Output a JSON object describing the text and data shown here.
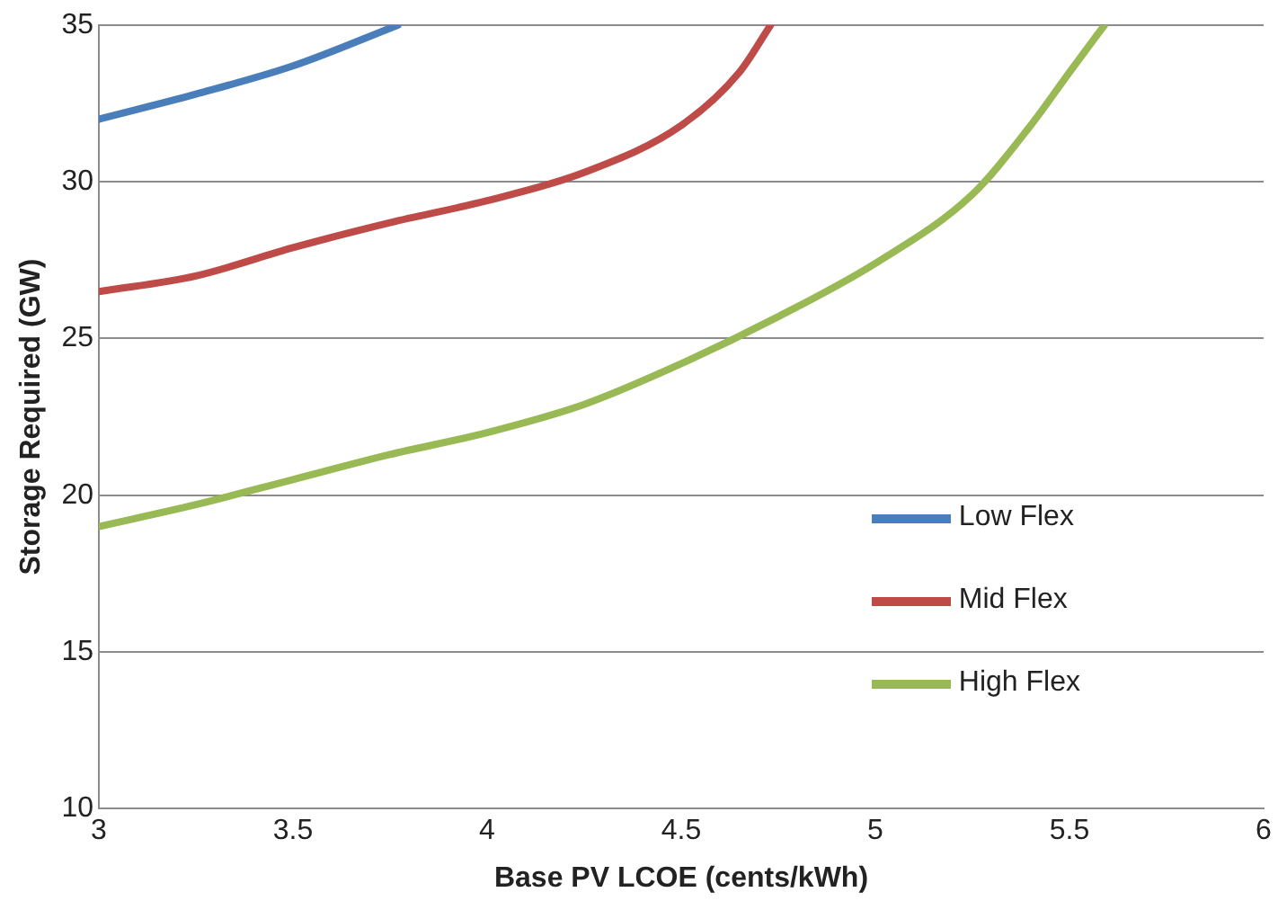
{
  "chart_data": {
    "type": "line",
    "xlabel": "Base PV LCOE (cents/kWh)",
    "ylabel": "Storage Required (GW)",
    "xlim": [
      3,
      6
    ],
    "xticks": [
      3,
      3.5,
      4,
      4.5,
      5,
      5.5,
      6
    ],
    "ylim": [
      10,
      35
    ],
    "yticks": [
      10,
      15,
      20,
      25,
      30,
      35
    ],
    "grid": "y",
    "legend": "right",
    "marker": "none",
    "line_style": "solid",
    "series": [
      {
        "name": "Low Flex",
        "color": "#4a7ebb",
        "x": [
          3,
          3.25,
          3.5,
          3.77
        ],
        "values": [
          32,
          32.8,
          33.7,
          35
        ]
      },
      {
        "name": "Mid Flex",
        "color": "#be4b48",
        "x": [
          3,
          3.25,
          3.5,
          3.75,
          4,
          4.25,
          4.5,
          4.65,
          4.73
        ],
        "values": [
          26.5,
          27,
          27.9,
          28.7,
          29.4,
          30.3,
          31.8,
          33.5,
          35
        ]
      },
      {
        "name": "High Flex",
        "color": "#98b954",
        "x": [
          3,
          3.25,
          3.5,
          3.75,
          4,
          4.25,
          4.5,
          4.75,
          5,
          5.25,
          5.4,
          5.5,
          5.59
        ],
        "values": [
          19,
          19.7,
          20.5,
          21.3,
          22,
          22.9,
          24.2,
          25.7,
          27.4,
          29.6,
          31.8,
          33.5,
          35
        ]
      }
    ]
  }
}
